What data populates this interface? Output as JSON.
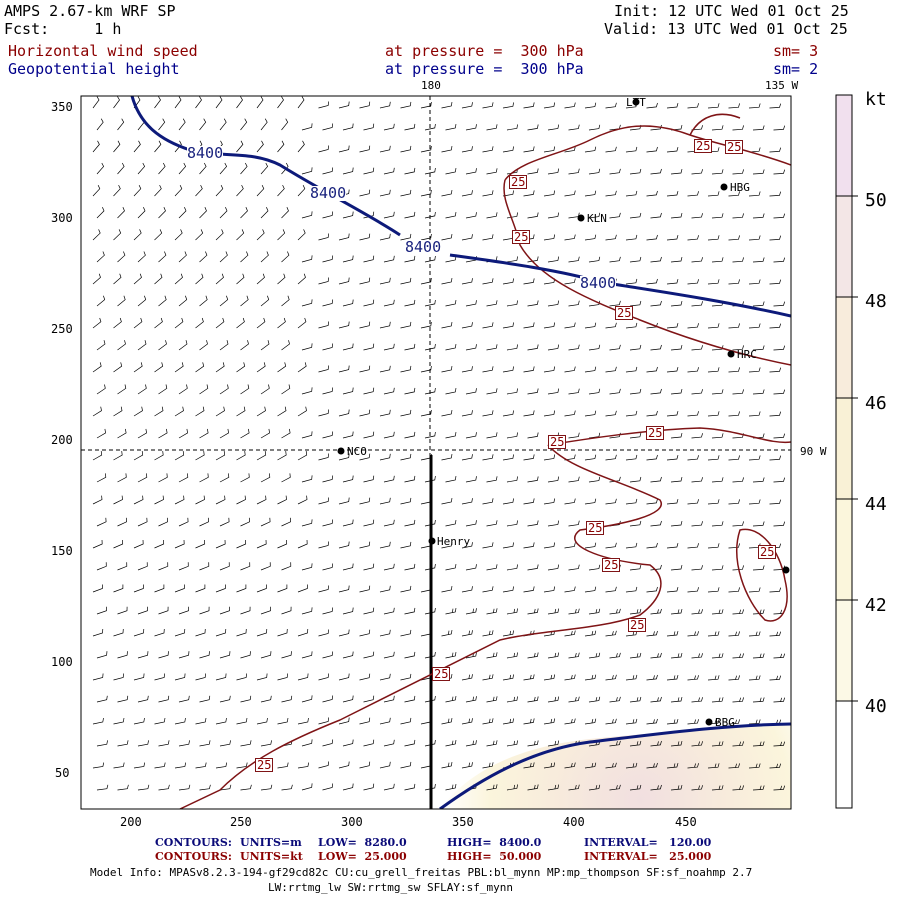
{
  "header": {
    "model": "AMPS 2.67-km WRF SP",
    "fcst": "Fcst:     1 h",
    "init": "Init: 12 UTC Wed 01 Oct 25",
    "valid": "Valid: 13 UTC Wed 01 Oct 25",
    "field1": {
      "name": "Horizontal wind speed",
      "level": "at pressure =  300 hPa",
      "sm": "sm= 3"
    },
    "field2": {
      "name": "Geopotential height",
      "level": "at pressure =  300 hPa",
      "sm": "sm= 2"
    }
  },
  "map": {
    "lon_top_180": "180",
    "lon_top_135w": "135 W",
    "lon_right_90w": "90 W",
    "x_ticks": [
      "200",
      "250",
      "300",
      "350",
      "400",
      "450"
    ],
    "y_ticks": [
      "350",
      "300",
      "250",
      "200",
      "150",
      "100",
      "50"
    ],
    "stations": [
      "NCO",
      "Henry",
      "KLN",
      "HBG",
      "HRC",
      "BBG",
      "LTT"
    ],
    "height_labels": [
      "8400",
      "8400",
      "8400",
      "8400"
    ],
    "speed_labels": [
      "25",
      "25",
      "25",
      "25",
      "25",
      "25",
      "25",
      "25",
      "25",
      "25",
      "25",
      "25",
      "25"
    ]
  },
  "colorbar": {
    "units": "kt",
    "labels": [
      "50",
      "48",
      "46",
      "44",
      "42",
      "40"
    ],
    "colors": [
      "#f1e0ee",
      "#f3e6e6",
      "#f8ecdc",
      "#f9f1d6",
      "#fbf6dc",
      "#fcf9e6",
      "#ffffff"
    ]
  },
  "footer": {
    "row1": {
      "label": "CONTOURS:",
      "units": "UNITS=m",
      "low": "LOW=  8280.0",
      "high": "HIGH=  8400.0",
      "interval": "INTERVAL=   120.00"
    },
    "row2": {
      "label": "CONTOURS:",
      "units": "UNITS=kt",
      "low": "LOW=  25.000",
      "high": "HIGH=  50.000",
      "interval": "INTERVAL=   25.000"
    },
    "info1": "Model Info: MPASv8.2.3-194-gf29cd82c CU:cu_grell_freitas PBL:bl_mynn MP:mp_thompson SF:sf_noahmp 2.7",
    "info2": "LW:rrtmg_lw SW:rrtmg_sw SFLAY:sf_mynn"
  },
  "chart_data": {
    "type": "map",
    "x_range": [
      175,
      495
    ],
    "y_range": [
      34,
      355
    ],
    "geopotential_height_contours_m": [
      8400
    ],
    "wind_speed_contours_kt": [
      25
    ],
    "shading_levels_kt": [
      40,
      42,
      44,
      46,
      48,
      50
    ],
    "cross_section_x": 335,
    "cross_section_y_range": [
      34,
      195
    ]
  }
}
